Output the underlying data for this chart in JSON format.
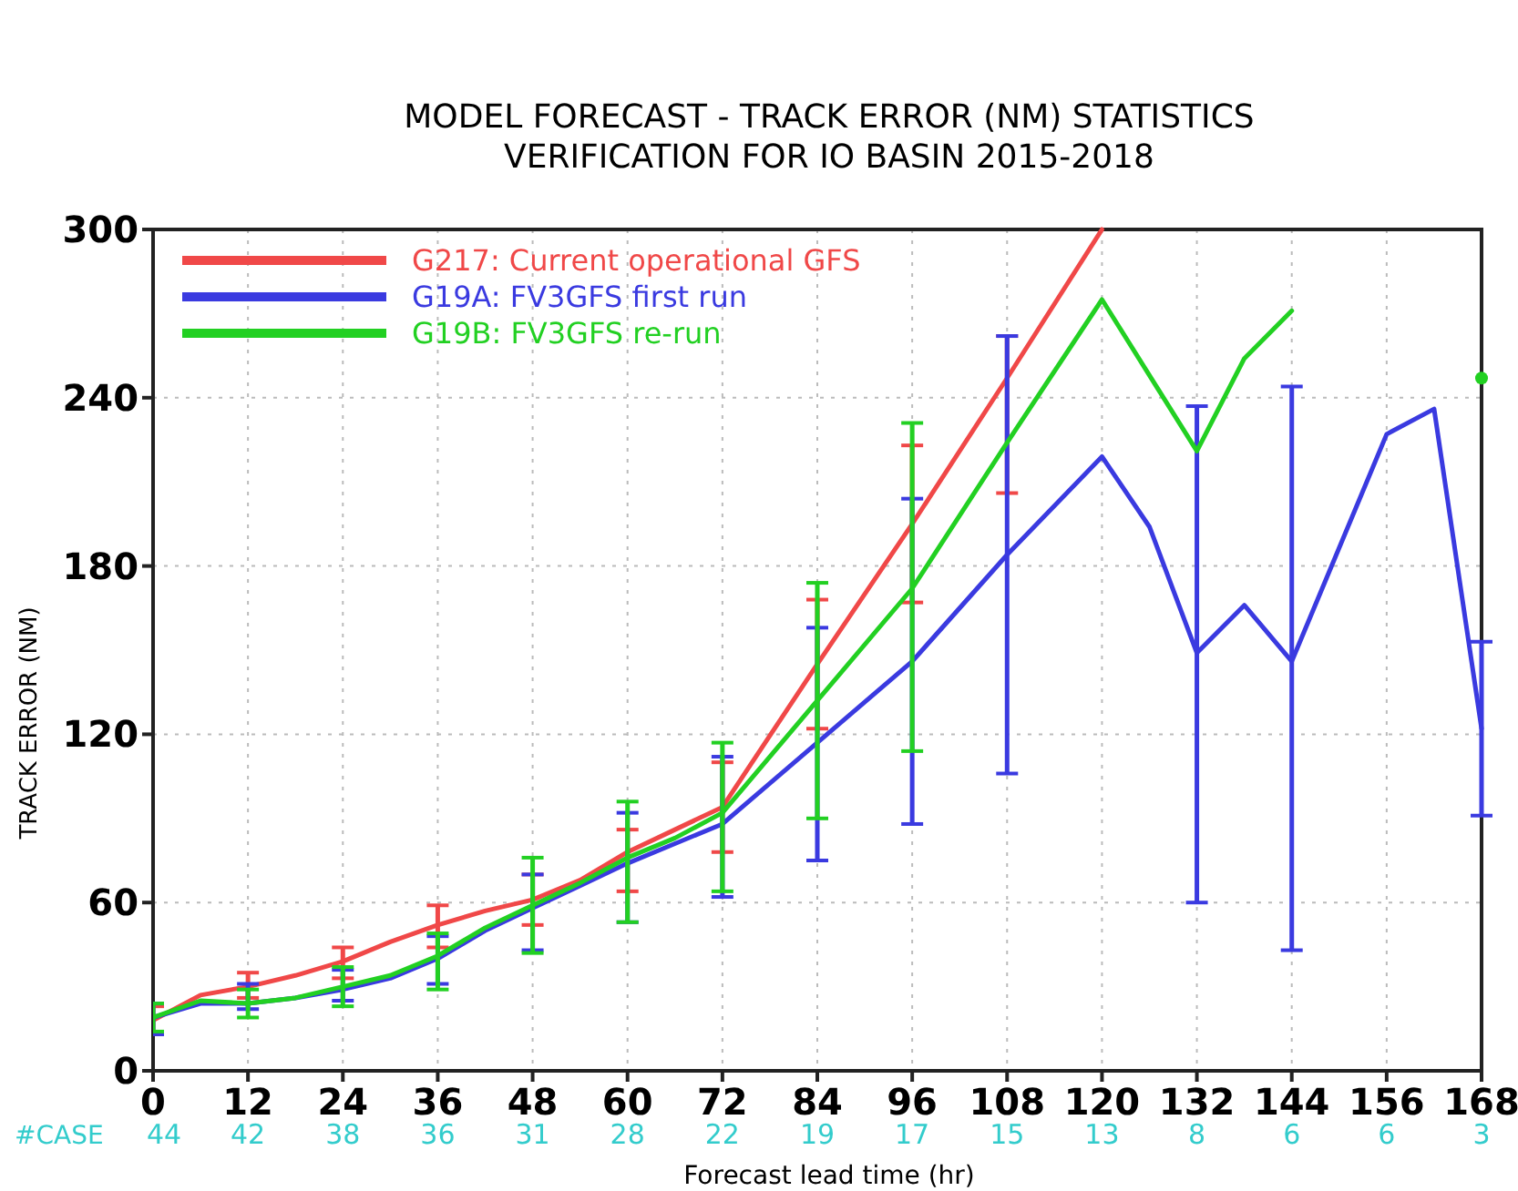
{
  "chart_data": {
    "type": "line",
    "title": "MODEL FORECAST - TRACK ERROR (NM) STATISTICS",
    "subtitle": "VERIFICATION FOR IO BASIN 2015-2018",
    "xlabel": "Forecast lead time (hr)",
    "ylabel": "TRACK ERROR (NM)",
    "xlim": [
      0,
      168
    ],
    "xticks": [
      0,
      12,
      24,
      36,
      48,
      60,
      72,
      84,
      96,
      108,
      120,
      132,
      144,
      156,
      168
    ],
    "ylim": [
      0,
      300
    ],
    "yticks": [
      0,
      60,
      120,
      180,
      240,
      300
    ],
    "grid": true,
    "legend": "top left",
    "marker": "none",
    "line_style": "solid",
    "series": [
      {
        "name": "G217: Current operational GFS",
        "color": "#f04848",
        "x": [
          0,
          6,
          12,
          18,
          24,
          30,
          36,
          42,
          48,
          54,
          60,
          66,
          72,
          84,
          96,
          108,
          120
        ],
        "values": [
          18,
          27,
          30,
          34,
          39,
          46,
          52,
          57,
          61,
          68,
          78,
          86,
          94,
          145,
          195,
          247,
          300
        ],
        "errors": [
          [
            13,
            23
          ],
          null,
          [
            26,
            35
          ],
          null,
          [
            33,
            44
          ],
          null,
          [
            44,
            59
          ],
          null,
          [
            52,
            70
          ],
          null,
          [
            64,
            86
          ],
          null,
          [
            78,
            110
          ],
          [
            122,
            168
          ],
          [
            167,
            223
          ],
          [
            206,
            262
          ],
          null
        ]
      },
      {
        "name": "G19A: FV3GFS first run",
        "color": "#3a3ae0",
        "x": [
          0,
          6,
          12,
          18,
          24,
          30,
          36,
          42,
          48,
          54,
          60,
          66,
          72,
          84,
          96,
          108,
          120,
          126,
          132,
          138,
          144,
          156,
          162,
          168
        ],
        "values": [
          19,
          24,
          24,
          26,
          29,
          33,
          40,
          50,
          58,
          66,
          74,
          81,
          88,
          117,
          146,
          184,
          219,
          194,
          149,
          166,
          146,
          227,
          236,
          122
        ],
        "errors": [
          [
            13,
            24
          ],
          null,
          [
            22,
            31
          ],
          null,
          [
            25,
            36
          ],
          null,
          [
            31,
            48
          ],
          null,
          [
            43,
            70
          ],
          null,
          [
            53,
            92
          ],
          null,
          [
            62,
            112
          ],
          [
            75,
            158
          ],
          [
            88,
            204
          ],
          [
            106,
            262
          ],
          null,
          null,
          [
            60,
            237
          ],
          null,
          [
            43,
            244
          ],
          null,
          null,
          [
            91,
            153
          ]
        ]
      },
      {
        "name": "G19B: FV3GFS re-run",
        "color": "#22d022",
        "x": [
          0,
          6,
          12,
          18,
          24,
          30,
          36,
          42,
          48,
          54,
          60,
          66,
          72,
          84,
          96,
          108,
          120,
          132,
          138,
          144,
          150,
          156,
          162,
          168
        ],
        "values": [
          19,
          25,
          24,
          26,
          30,
          34,
          41,
          51,
          59,
          67,
          76,
          83,
          92,
          132,
          172,
          224,
          275,
          221,
          254,
          271,
          null,
          null,
          null,
          247
        ],
        "errors": [
          [
            14,
            24
          ],
          null,
          [
            19,
            29
          ],
          null,
          [
            23,
            37
          ],
          null,
          [
            29,
            49
          ],
          null,
          [
            42,
            76
          ],
          null,
          [
            53,
            96
          ],
          null,
          [
            64,
            117
          ],
          [
            90,
            174
          ],
          [
            114,
            231
          ],
          null,
          null,
          null,
          null,
          null,
          null,
          null,
          null,
          null
        ]
      }
    ],
    "annotations": [
      "#CASE",
      "44",
      "42",
      "38",
      "36",
      "31",
      "28",
      "22",
      "19",
      "17",
      "15",
      "13",
      "8",
      "6",
      "6",
      "3"
    ]
  }
}
